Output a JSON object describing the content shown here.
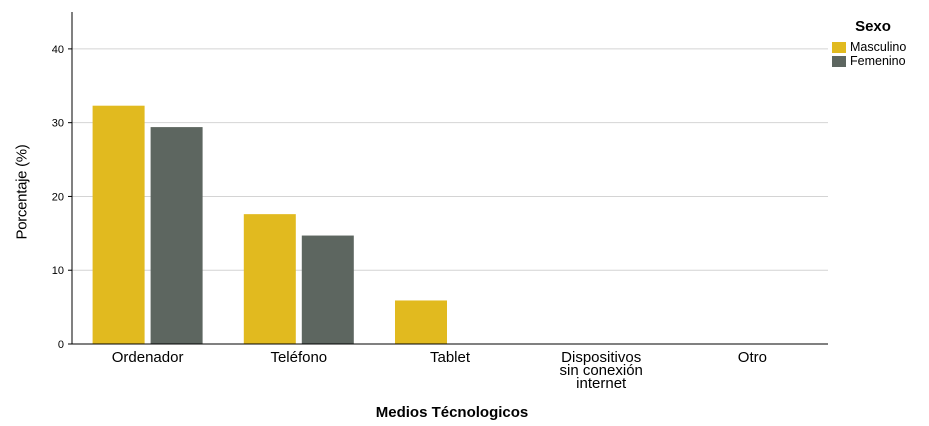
{
  "chart_data": {
    "type": "bar",
    "title": "",
    "xlabel": "Medios Técnologicos",
    "ylabel": "Porcentaje (%)",
    "ylim": [
      0,
      45
    ],
    "yticks": [
      0,
      10,
      20,
      30,
      40
    ],
    "grid": true,
    "legend_title": "Sexo",
    "legend_position": "top-right",
    "categories": [
      "Ordenador",
      "Teléfono",
      "Tablet",
      "Dispositivos sin conexión internet",
      "Otro"
    ],
    "series": [
      {
        "name": "Masculino",
        "color": "#E1BA1F",
        "values": [
          32.3,
          17.6,
          5.9,
          0,
          0
        ]
      },
      {
        "name": "Femenino",
        "color": "#5D6660",
        "values": [
          29.4,
          14.7,
          0,
          0,
          0
        ]
      }
    ]
  }
}
